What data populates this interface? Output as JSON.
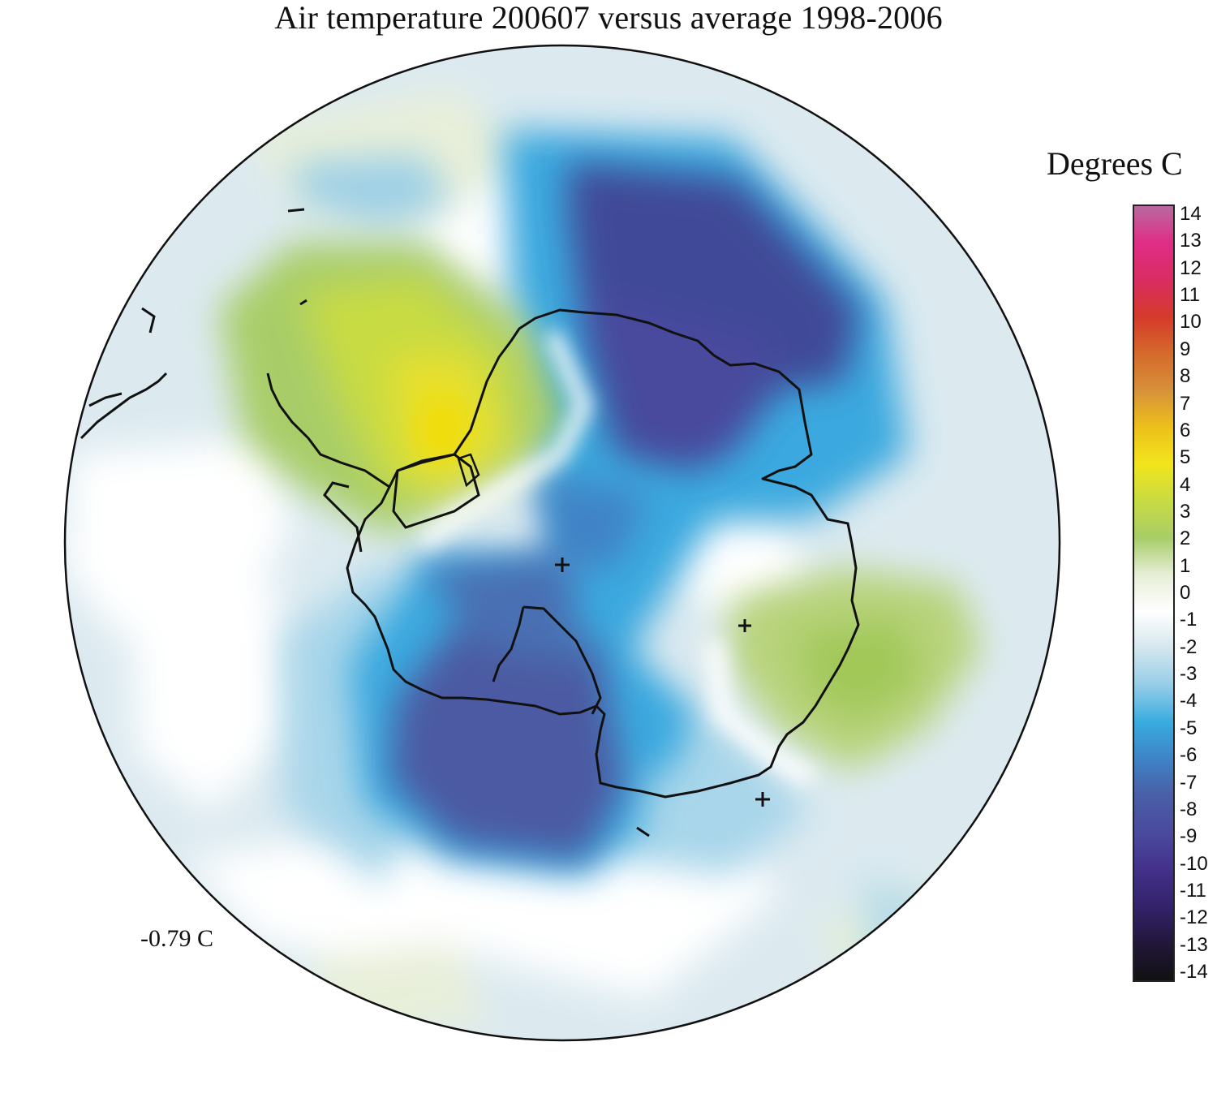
{
  "title": "Air temperature 200607 versus average 1998-2006",
  "legend": {
    "title": "Degrees C",
    "ticks": [
      "14",
      "13",
      "12",
      "11",
      "10",
      "9",
      "8",
      "7",
      "6",
      "5",
      "4",
      "3",
      "2",
      "1",
      "0",
      "-1",
      "-2",
      "-3",
      "-4",
      "-5",
      "-6",
      "-7",
      "-8",
      "-9",
      "-10",
      "-11",
      "-12",
      "-13",
      "-14"
    ],
    "range": [
      -14,
      14
    ],
    "colors": [
      "#111111",
      "#22163a",
      "#34236b",
      "#43308a",
      "#4a4a9e",
      "#4a5ea6",
      "#3f83c6",
      "#38abdf",
      "#95cde8",
      "#d4e7ee",
      "#ffffff",
      "#e6eed6",
      "#a8cd68",
      "#c8db42",
      "#f1e51c",
      "#edc01a",
      "#d7913a",
      "#d5692b",
      "#d53b2a",
      "#d92c62",
      "#e02d86",
      "#b8699f"
    ]
  },
  "map": {
    "markers": [
      "plus-marker",
      "plus-marker",
      "plus-marker"
    ],
    "anomaly_regions": [
      {
        "region": "east-antarctica-interior",
        "value": -8
      },
      {
        "region": "ross-sea-sector",
        "value": -7
      },
      {
        "region": "antarctic-peninsula-weddell",
        "value": 4.5
      },
      {
        "region": "south-atlantic",
        "value": 2
      },
      {
        "region": "southern-indian-ocean",
        "value": 2
      }
    ]
  },
  "mean_value": "-0.79 C"
}
